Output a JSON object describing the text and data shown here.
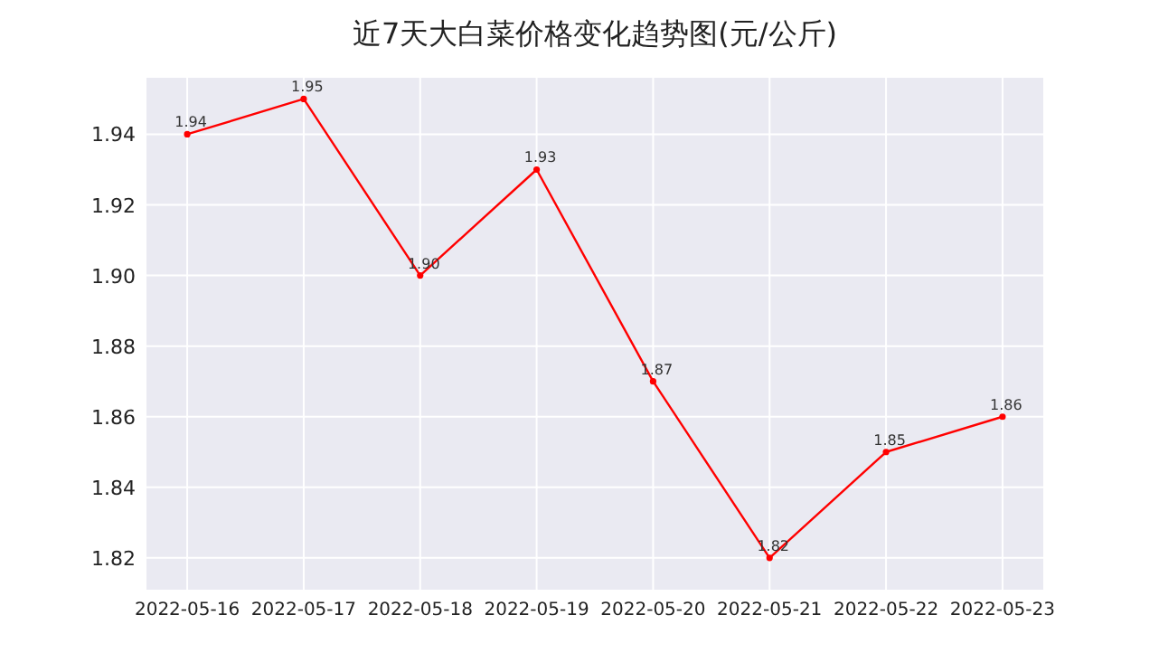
{
  "chart_data": {
    "type": "line",
    "title": "近7天大白菜价格变化趋势图(元/公斤)",
    "categories": [
      "2022-05-16",
      "2022-05-17",
      "2022-05-18",
      "2022-05-19",
      "2022-05-20",
      "2022-05-21",
      "2022-05-22",
      "2022-05-23"
    ],
    "series": [
      {
        "color": "#ff0000",
        "values": [
          1.94,
          1.95,
          1.9,
          1.93,
          1.87,
          1.82,
          1.85,
          1.86
        ],
        "value_labels": [
          "1.94",
          "1.95",
          "1.90",
          "1.93",
          "1.87",
          "1.82",
          "1.85",
          "1.86"
        ]
      }
    ],
    "ylim": [
      1.811,
      1.956
    ],
    "yticks": [
      1.82,
      1.84,
      1.86,
      1.88,
      {
        "value": 1.9,
        "label": "1.90"
      },
      1.92,
      1.94
    ],
    "grid": true,
    "marker": "circle",
    "line_style": "solid"
  }
}
